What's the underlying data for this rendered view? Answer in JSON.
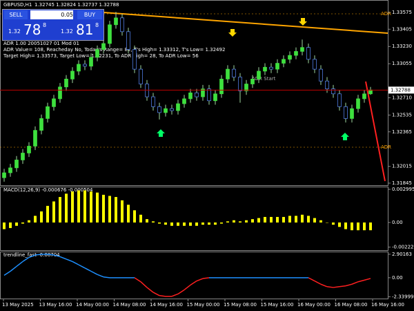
{
  "header": {
    "symbol": "GBPUSD,H1",
    "ohlc": "1.32745 1.32824 1.32737 1.32788"
  },
  "trade_panel": {
    "sell": "SELL",
    "lot": "0.05",
    "buy": "BUY",
    "sell_small": "1.32",
    "sell_big": "78",
    "sell_sup": "8",
    "buy_small": "1.32",
    "buy_big": "81",
    "buy_sup": "8"
  },
  "info_lines": [
    "ADR 1.00 20051027 01 Mod 01",
    "ADR Value= 108, Reacheday No, Today's Range= 82, T's High= 1.33312, T's Low= 1.32492",
    "Target High= 1.33573, Target Low= 1.32231, To ADR High= 28, To ADR Low= 56"
  ],
  "annotations": {
    "adr_high": "ADR",
    "adr_low": "ADR",
    "adr_start": "ADR Start"
  },
  "main_chart": {
    "ylim": [
      1.31824,
      1.33701
    ],
    "yticks": [
      1.33575,
      1.33405,
      {
        "value": 1.3323,
        "label": "1.33230"
      },
      1.33055,
      {
        "value": 1.3271,
        "label": "1.32710"
      },
      1.32535,
      1.32365,
      1.32015,
      1.31845
    ],
    "current_price": {
      "value": 1.32788,
      "label": "1.32788"
    },
    "colors": {
      "bull": "#3ee03e",
      "bear": "#000000",
      "bear_edge": "#5b8cff",
      "wick": "#9fd89f"
    },
    "candles": [
      [
        1.319,
        1.3199,
        1.3186,
        1.3195
      ],
      [
        1.3195,
        1.3204,
        1.3191,
        1.32
      ],
      [
        1.32,
        1.3212,
        1.3196,
        1.3208
      ],
      [
        1.3208,
        1.3219,
        1.3204,
        1.3215
      ],
      [
        1.3215,
        1.3226,
        1.3211,
        1.3222
      ],
      [
        1.3222,
        1.3242,
        1.3218,
        1.3238
      ],
      [
        1.3238,
        1.3254,
        1.3234,
        1.325
      ],
      [
        1.325,
        1.3266,
        1.3246,
        1.3262
      ],
      [
        1.3262,
        1.3274,
        1.3258,
        1.327
      ],
      [
        1.327,
        1.3286,
        1.3266,
        1.3282
      ],
      [
        1.3282,
        1.3294,
        1.3278,
        1.329
      ],
      [
        1.329,
        1.3302,
        1.3286,
        1.3298
      ],
      [
        1.3298,
        1.3309,
        1.3294,
        1.3305
      ],
      [
        1.3305,
        1.3309,
        1.3299,
        1.3303
      ],
      [
        1.3303,
        1.3316,
        1.3299,
        1.3312
      ],
      [
        1.3312,
        1.3324,
        1.3308,
        1.332
      ],
      [
        1.332,
        1.333,
        1.3316,
        1.3326
      ],
      [
        1.3326,
        1.3349,
        1.3322,
        1.3345
      ],
      [
        1.3345,
        1.3358,
        1.3341,
        1.3352
      ],
      [
        1.3352,
        1.3356,
        1.3334,
        1.3338
      ],
      [
        1.3338,
        1.3342,
        1.3316,
        1.332
      ],
      [
        1.332,
        1.3324,
        1.3296,
        1.33
      ],
      [
        1.33,
        1.3304,
        1.3281,
        1.3285
      ],
      [
        1.3285,
        1.3289,
        1.3268,
        1.3272
      ],
      [
        1.3272,
        1.3276,
        1.3258,
        1.3262
      ],
      [
        1.3262,
        1.3266,
        1.3249,
        1.3256
      ],
      [
        1.3256,
        1.3264,
        1.3252,
        1.326
      ],
      [
        1.326,
        1.3264,
        1.3254,
        1.3258
      ],
      [
        1.3258,
        1.3269,
        1.3254,
        1.3265
      ],
      [
        1.3265,
        1.3274,
        1.3261,
        1.327
      ],
      [
        1.327,
        1.328,
        1.3266,
        1.3276
      ],
      [
        1.3276,
        1.328,
        1.3268,
        1.3272
      ],
      [
        1.3272,
        1.3284,
        1.3268,
        1.328
      ],
      [
        1.328,
        1.3284,
        1.3264,
        1.3268
      ],
      [
        1.3268,
        1.3279,
        1.3264,
        1.3275
      ],
      [
        1.3275,
        1.3294,
        1.3271,
        1.329
      ],
      [
        1.329,
        1.3304,
        1.3286,
        1.33
      ],
      [
        1.33,
        1.3304,
        1.3288,
        1.3292
      ],
      [
        1.3292,
        1.3296,
        1.3266,
        1.3278
      ],
      [
        1.3278,
        1.3289,
        1.3274,
        1.3285
      ],
      [
        1.3285,
        1.3294,
        1.3281,
        1.329
      ],
      [
        1.329,
        1.3302,
        1.3286,
        1.3298
      ],
      [
        1.3298,
        1.3306,
        1.3294,
        1.3302
      ],
      [
        1.3302,
        1.3306,
        1.3296,
        1.33
      ],
      [
        1.33,
        1.331,
        1.3296,
        1.3306
      ],
      [
        1.3306,
        1.3314,
        1.3302,
        1.331
      ],
      [
        1.331,
        1.3318,
        1.3306,
        1.3314
      ],
      [
        1.3314,
        1.3322,
        1.331,
        1.3318
      ],
      [
        1.3318,
        1.333,
        1.3314,
        1.3322
      ],
      [
        1.3322,
        1.3326,
        1.3306,
        1.331
      ],
      [
        1.331,
        1.3314,
        1.3296,
        1.33
      ],
      [
        1.33,
        1.3304,
        1.3284,
        1.3288
      ],
      [
        1.3288,
        1.3292,
        1.3276,
        1.328
      ],
      [
        1.328,
        1.3284,
        1.3271,
        1.3275
      ],
      [
        1.3275,
        1.3279,
        1.3258,
        1.3262
      ],
      [
        1.3262,
        1.3266,
        1.3246,
        1.325
      ],
      [
        1.325,
        1.3264,
        1.3246,
        1.326
      ],
      [
        1.326,
        1.3274,
        1.3256,
        1.327
      ],
      [
        1.327,
        1.3279,
        1.3266,
        1.3275
      ],
      [
        1.3275,
        1.3282,
        1.3274,
        1.3279
      ]
    ]
  },
  "macd": {
    "label": "MACD(12,26,9) -0.000676 -0.000504",
    "ylim": [
      -0.0025,
      0.00324
    ],
    "yticks": [
      0.002995,
      {
        "value": 0,
        "label": "0.00"
      },
      -0.00222
    ],
    "color": "#ffff00",
    "values": [
      -0.0006,
      -0.0005,
      -0.0003,
      -0.0001,
      0.0002,
      0.0006,
      0.001,
      0.0015,
      0.0019,
      0.0023,
      0.0026,
      0.0028,
      0.0029,
      0.0029,
      0.0028,
      0.0027,
      0.0025,
      0.0024,
      0.0023,
      0.002,
      0.0016,
      0.0011,
      0.0007,
      0.0003,
      0.0001,
      -0.0001,
      -0.0002,
      -0.0003,
      -0.0003,
      -0.0003,
      -0.0003,
      -0.0003,
      -0.0002,
      -0.0002,
      -0.0002,
      -0.0001,
      0.0001,
      0.0002,
      0.0001,
      0.0002,
      0.0003,
      0.0004,
      0.0005,
      0.0005,
      0.0005,
      0.0005,
      0.0006,
      0.0006,
      0.0007,
      0.0006,
      0.0004,
      0.0002,
      0,
      -0.0002,
      -0.0004,
      -0.0006,
      -0.0007,
      -0.0007,
      -0.0007,
      -0.0007
    ]
  },
  "trend": {
    "label": "trendline_fast -0.08704",
    "ylim": [
      -2.57,
      3.23
    ],
    "yticks": [
      2.90163,
      {
        "value": 0,
        "label": "0.00"
      },
      -2.33999
    ],
    "colors": {
      "up": "#1e90ff",
      "down": "#ff2020"
    },
    "values": [
      0.3,
      0.8,
      1.4,
      2.0,
      2.5,
      2.8,
      2.9,
      2.9,
      2.8,
      2.6,
      2.3,
      2.0,
      1.6,
      1.2,
      0.8,
      0.4,
      0.1,
      0,
      0,
      0,
      0,
      0,
      -0.5,
      -1.2,
      -1.8,
      -2.2,
      -2.3,
      -2.3,
      -2.0,
      -1.5,
      -0.9,
      -0.4,
      -0.1,
      0,
      0,
      0,
      0,
      0,
      0,
      0,
      0,
      0,
      0,
      0,
      0,
      0,
      0,
      0,
      0,
      0,
      -0.4,
      -0.8,
      -1.1,
      -1.2,
      -1.1,
      -1.0,
      -0.8,
      -0.5,
      -0.3,
      -0.09
    ]
  },
  "time_labels": [
    "13 May 2025",
    "13 May 16:00",
    "14 May 00:00",
    "14 May 08:00",
    "14 May 16:00",
    "15 May 00:00",
    "15 May 08:00",
    "15 May 16:00",
    "16 May 00:00",
    "16 May 08:00",
    "16 May 16:00"
  ]
}
